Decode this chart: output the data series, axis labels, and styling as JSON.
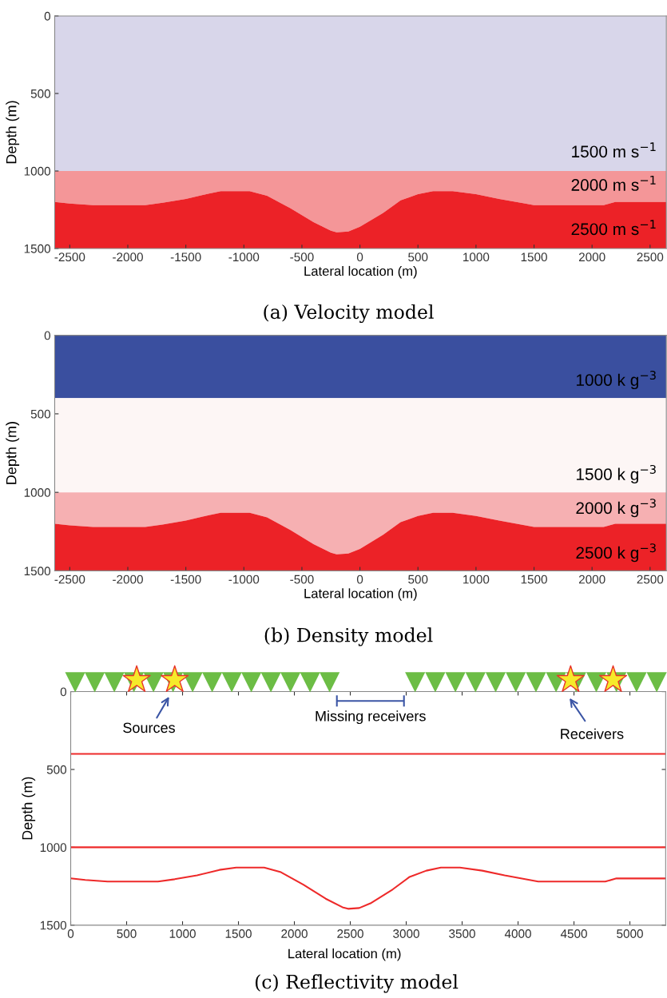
{
  "chart_data": [
    {
      "type": "area",
      "stacked": true,
      "title": "(a) Velocity model",
      "xlabel": "Lateral location (m)",
      "ylabel": "Depth (m)",
      "x": [
        -2630,
        -2500,
        -2300,
        -1850,
        -1700,
        -1500,
        -1300,
        -1200,
        -950,
        -800,
        -600,
        -400,
        -250,
        -200,
        -100,
        0,
        200,
        350,
        500,
        630,
        800,
        1000,
        1200,
        1500,
        2100,
        2200,
        2640
      ],
      "series": [
        {
          "name": "1500 m s$^{−1}$",
          "color": "#d8d6ea",
          "values": [
            1000,
            1000,
            1000,
            1000,
            1000,
            1000,
            1000,
            1000,
            1000,
            1000,
            1000,
            1000,
            1000,
            1000,
            1000,
            1000,
            1000,
            1000,
            1000,
            1000,
            1000,
            1000,
            1000,
            1000,
            1000,
            1000,
            1000
          ]
        },
        {
          "name": "2000 m s$^{−1}$",
          "color": "#f49698",
          "values": [
            200,
            210,
            220,
            220,
            205,
            180,
            145,
            130,
            130,
            160,
            240,
            330,
            385,
            395,
            390,
            360,
            270,
            190,
            150,
            130,
            130,
            150,
            180,
            220,
            220,
            200,
            200
          ]
        },
        {
          "name": "2500 m s$^{−1}$",
          "color": "#ec2227",
          "values": [
            300,
            290,
            280,
            280,
            295,
            320,
            355,
            370,
            370,
            340,
            260,
            170,
            115,
            105,
            110,
            140,
            230,
            310,
            350,
            370,
            370,
            350,
            320,
            280,
            280,
            300,
            300
          ]
        }
      ],
      "xlim": [
        -2630,
        2640
      ],
      "ylim": [
        1500,
        0
      ],
      "xticks": [
        -2500,
        -2000,
        -1500,
        -1000,
        -500,
        0,
        500,
        1000,
        1500,
        2000,
        2500
      ],
      "yticks": [
        0,
        500,
        1000,
        1500
      ],
      "grid": false
    },
    {
      "type": "area",
      "stacked": true,
      "title": "(b) Density model",
      "xlabel": "Lateral location (m)",
      "ylabel": "Depth (m)",
      "x": [
        -2630,
        -2500,
        -2300,
        -1850,
        -1700,
        -1500,
        -1300,
        -1200,
        -950,
        -800,
        -600,
        -400,
        -250,
        -200,
        -100,
        0,
        200,
        350,
        500,
        630,
        800,
        1000,
        1200,
        1500,
        2100,
        2200,
        2640
      ],
      "series": [
        {
          "name": "1000 k g$^{−3}$",
          "color": "#3a4f9f",
          "values": [
            400,
            400,
            400,
            400,
            400,
            400,
            400,
            400,
            400,
            400,
            400,
            400,
            400,
            400,
            400,
            400,
            400,
            400,
            400,
            400,
            400,
            400,
            400,
            400,
            400,
            400,
            400
          ]
        },
        {
          "name": "1500 k g$^{−3}$",
          "color": "#fdf6f5",
          "values": [
            600,
            600,
            600,
            600,
            600,
            600,
            600,
            600,
            600,
            600,
            600,
            600,
            600,
            600,
            600,
            600,
            600,
            600,
            600,
            600,
            600,
            600,
            600,
            600,
            600,
            600,
            600
          ]
        },
        {
          "name": "2000 k g$^{−3}$",
          "color": "#f6b0b2",
          "values": [
            200,
            210,
            220,
            220,
            205,
            180,
            145,
            130,
            130,
            160,
            240,
            330,
            385,
            395,
            390,
            360,
            270,
            190,
            150,
            130,
            130,
            150,
            180,
            220,
            220,
            200,
            200
          ]
        },
        {
          "name": "2500 k g$^{−3}$",
          "color": "#ec2227",
          "values": [
            300,
            290,
            280,
            280,
            295,
            320,
            355,
            370,
            370,
            340,
            260,
            170,
            115,
            105,
            110,
            140,
            230,
            310,
            350,
            370,
            370,
            350,
            320,
            280,
            280,
            300,
            300
          ]
        }
      ],
      "xlim": [
        -2630,
        2640
      ],
      "ylim": [
        1500,
        0
      ],
      "xticks": [
        -2500,
        -2000,
        -1500,
        -1000,
        -500,
        0,
        500,
        1000,
        1500,
        2000,
        2500
      ],
      "yticks": [
        0,
        500,
        1000,
        1500
      ],
      "grid": false
    },
    {
      "type": "line",
      "title": "(c) Reflectivity model",
      "xlabel": "Lateral location (m)",
      "ylabel": "Depth (m)",
      "series": [
        {
          "color": "#ee2a2a",
          "x": [
            0,
            5320
          ],
          "values": [
            400,
            400
          ]
        },
        {
          "color": "#ee2a2a",
          "x": [
            0,
            5320
          ],
          "values": [
            1000,
            1000
          ]
        },
        {
          "color": "#ee2a2a",
          "x": [
            0,
            130,
            330,
            780,
            930,
            1130,
            1330,
            1480,
            1730,
            1880,
            2080,
            2280,
            2430,
            2480,
            2580,
            2680,
            2880,
            3030,
            3180,
            3310,
            3480,
            3680,
            3880,
            4180,
            4780,
            4880,
            5320
          ],
          "values": [
            1200,
            1210,
            1220,
            1220,
            1205,
            1180,
            1145,
            1130,
            1130,
            1160,
            1240,
            1330,
            1385,
            1395,
            1390,
            1360,
            1270,
            1190,
            1150,
            1130,
            1130,
            1150,
            1180,
            1220,
            1220,
            1200,
            1200
          ]
        }
      ],
      "annotations": [
        "Sources",
        "Missing receivers",
        "Receivers"
      ],
      "xlim": [
        0,
        5320
      ],
      "ylim": [
        1500,
        0
      ],
      "xticks": [
        0,
        500,
        1000,
        1500,
        2000,
        2500,
        3000,
        3500,
        4000,
        4500,
        5000
      ],
      "yticks": [
        0,
        500,
        1000,
        1500
      ],
      "grid": false,
      "marker": "none",
      "line_style": "solid"
    }
  ]
}
